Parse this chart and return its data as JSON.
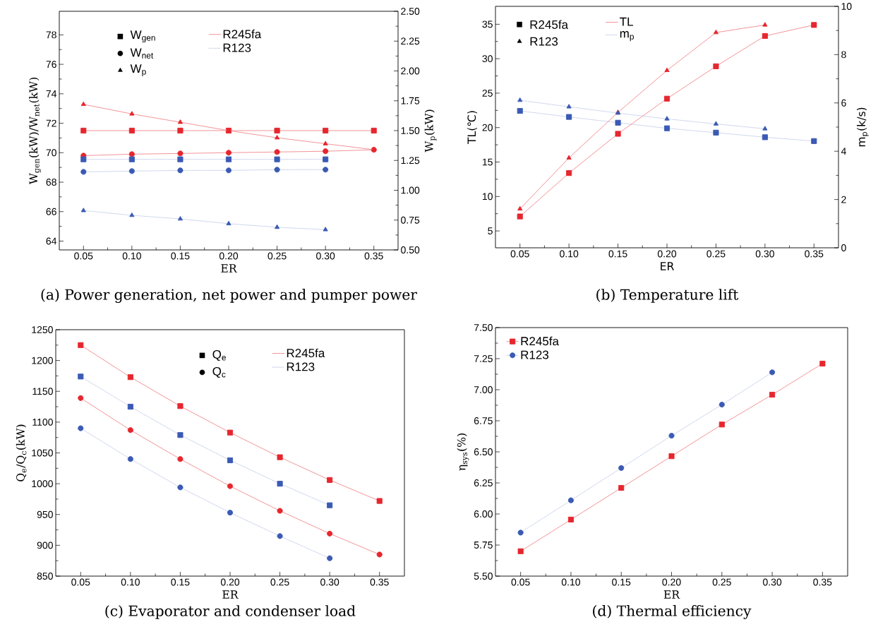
{
  "chart_data": [
    {
      "type": "line",
      "title": "(a) Power generation, net power and pumper power",
      "xlabel": "ER",
      "ylabel": "W$_{gen}$(kW)/W$_{net}$(kW)",
      "y2label": "W$_{p}$(kW)",
      "x": [
        0.05,
        0.1,
        0.15,
        0.2,
        0.25,
        0.3,
        0.35
      ],
      "xlim": [
        0.025,
        0.375
      ],
      "xticks": [
        0.05,
        {
          "value": 0.1,
          "label": "0.10"
        },
        0.15,
        {
          "value": 0.2,
          "label": "0.20"
        },
        0.25,
        {
          "value": 0.3,
          "label": "0.30"
        },
        0.35
      ],
      "ylim": [
        63.4,
        79.6
      ],
      "yticks": [
        64,
        66,
        68,
        70,
        72,
        74,
        76,
        78
      ],
      "y2lim": [
        0.5,
        2.5
      ],
      "y2ticks": [
        {
          "value": 0.5,
          "label": "0.50"
        },
        0.75,
        {
          "value": 1,
          "label": "1.00"
        },
        1.25,
        {
          "value": 1.5,
          "label": "1.50"
        },
        1.75,
        {
          "value": 2,
          "label": "2.00"
        },
        2.25,
        {
          "value": 2.5,
          "label": "2.50"
        }
      ],
      "annotations": [
        "W$_{gen}$",
        "W$_{net}$",
        "W$_{p}$"
      ],
      "legend": "top",
      "series": [
        {
          "name": "R245fa",
          "color": "#e6262e",
          "marker": "square",
          "line_style": "solid",
          "values": [
            71.5,
            71.5,
            71.5,
            71.5,
            71.5,
            71.5,
            71.5
          ]
        },
        {
          "color": "#e6262e",
          "marker": "circle",
          "line_style": "solid",
          "values": [
            69.8,
            69.9,
            69.95,
            70.0,
            70.05,
            70.1,
            70.2
          ]
        },
        {
          "color": "#e6262e",
          "marker": "triangle",
          "line_style": "solid",
          "axis": "y2",
          "values": [
            1.72,
            1.64,
            1.57,
            1.5,
            1.44,
            1.39,
            1.34
          ]
        },
        {
          "name": "R123",
          "color": "#3a5ab4",
          "marker": "square",
          "line_style": "dotted",
          "x": [
            0.05,
            0.1,
            0.15,
            0.2,
            0.25,
            0.3
          ],
          "values": [
            69.55,
            69.55,
            69.55,
            69.55,
            69.55,
            69.55
          ]
        },
        {
          "color": "#3a5ab4",
          "marker": "circle",
          "line_style": "dotted",
          "x": [
            0.05,
            0.1,
            0.15,
            0.2,
            0.25,
            0.3
          ],
          "values": [
            68.7,
            68.75,
            68.8,
            68.8,
            68.85,
            68.85
          ]
        },
        {
          "color": "#3a5ab4",
          "marker": "triangle",
          "line_style": "dotted",
          "axis": "y2",
          "x": [
            0.05,
            0.1,
            0.15,
            0.2,
            0.25,
            0.3
          ],
          "values": [
            0.83,
            0.79,
            0.76,
            0.72,
            0.69,
            0.67
          ]
        }
      ]
    },
    {
      "type": "line",
      "title": "(b) Temperature lift",
      "xlabel": "ER",
      "ylabel": "TL(℃)",
      "y2label": "m$_{p}$(k/s)",
      "x": [
        0.05,
        0.1,
        0.15,
        0.2,
        0.25,
        0.3,
        0.35
      ],
      "xlim": [
        0.025,
        0.375
      ],
      "xticks": [
        0.05,
        {
          "value": 0.1,
          "label": "0.10"
        },
        0.15,
        {
          "value": 0.2,
          "label": "0.20"
        },
        0.25,
        {
          "value": 0.3,
          "label": "0.30"
        },
        0.35
      ],
      "ylim": [
        2.55,
        37.6
      ],
      "yticks": [
        5,
        10,
        15,
        20,
        25,
        30,
        35
      ],
      "y2lim": [
        0,
        10
      ],
      "y2ticks": [
        0,
        2,
        4,
        6,
        8,
        10
      ],
      "annotations": [
        "R245fa",
        "R123"
      ],
      "legend": "top left",
      "series": [
        {
          "name": "TL",
          "color": "#e6262e",
          "marker": "square",
          "line_style": "solid",
          "values": [
            7.1,
            13.4,
            19.1,
            24.2,
            28.9,
            33.3,
            34.9
          ]
        },
        {
          "color": "#e6262e",
          "marker": "triangle",
          "line_style": "solid",
          "x": [
            0.05,
            0.1,
            0.15,
            0.2,
            0.25,
            0.3
          ],
          "values": [
            8.2,
            15.6,
            22.2,
            28.3,
            33.8,
            34.9
          ]
        },
        {
          "name": "m$_{p}$",
          "color": "#3a5ab4",
          "marker": "square",
          "line_style": "dotted",
          "axis": "y2",
          "values": [
            5.67,
            5.42,
            5.18,
            4.95,
            4.77,
            4.58,
            4.42
          ]
        },
        {
          "color": "#3a5ab4",
          "marker": "triangle",
          "line_style": "dotted",
          "axis": "y2",
          "x": [
            0.05,
            0.1,
            0.15,
            0.2,
            0.25,
            0.3
          ],
          "values": [
            6.11,
            5.84,
            5.58,
            5.34,
            5.13,
            4.93
          ]
        }
      ]
    },
    {
      "type": "line",
      "title": "(c) Evaporator and condenser load",
      "xlabel": "ER",
      "ylabel": "Q$_{e}$/Q$_{c}$(kW)",
      "x": [
        0.05,
        0.1,
        0.15,
        0.2,
        0.25,
        0.3,
        0.35
      ],
      "xlim": [
        0.025,
        0.375
      ],
      "xticks": [
        0.05,
        {
          "value": 0.1,
          "label": "0.10"
        },
        0.15,
        {
          "value": 0.2,
          "label": "0.20"
        },
        0.25,
        {
          "value": 0.3,
          "label": "0.30"
        },
        0.35
      ],
      "ylim": [
        850,
        1250
      ],
      "yticks": [
        850,
        900,
        950,
        1000,
        1050,
        1100,
        1150,
        1200,
        1250
      ],
      "annotations": [
        "Q$_{e}$",
        "Q$_{c}$"
      ],
      "legend": "top right",
      "series": [
        {
          "name": "R245fa",
          "color": "#e6262e",
          "marker": "square",
          "line_style": "solid",
          "values": [
            1225,
            1173,
            1126,
            1083,
            1043,
            1006,
            972
          ]
        },
        {
          "color": "#e6262e",
          "marker": "circle",
          "line_style": "solid",
          "values": [
            1139,
            1087,
            1040,
            996,
            956,
            919,
            885
          ]
        },
        {
          "name": "R123",
          "color": "#3a5ab4",
          "marker": "square",
          "line_style": "dotted",
          "x": [
            0.05,
            0.1,
            0.15,
            0.2,
            0.25,
            0.3
          ],
          "values": [
            1174,
            1125,
            1079,
            1038,
            1000,
            965
          ]
        },
        {
          "color": "#3a5ab4",
          "marker": "circle",
          "line_style": "dotted",
          "x": [
            0.05,
            0.1,
            0.15,
            0.2,
            0.25,
            0.3
          ],
          "values": [
            1090,
            1040,
            994,
            953,
            915,
            879
          ]
        }
      ]
    },
    {
      "type": "line",
      "title": "(d) Thermal efficiency",
      "xlabel": "ER",
      "ylabel": "η$_{sys}$(%)",
      "x": [
        0.05,
        0.1,
        0.15,
        0.2,
        0.25,
        0.3,
        0.35
      ],
      "xlim": [
        0.025,
        0.375
      ],
      "xticks": [
        0.05,
        {
          "value": 0.1,
          "label": "0.10"
        },
        0.15,
        {
          "value": 0.2,
          "label": "0.20"
        },
        0.25,
        {
          "value": 0.3,
          "label": "0.30"
        },
        0.35
      ],
      "ylim": [
        5.5,
        7.5
      ],
      "yticks": [
        {
          "value": 5.5,
          "label": "5.50"
        },
        5.75,
        {
          "value": 6,
          "label": "6.00"
        },
        6.25,
        {
          "value": 6.5,
          "label": "6.50"
        },
        6.75,
        {
          "value": 7,
          "label": "7.00"
        },
        7.25,
        {
          "value": 7.5,
          "label": "7.50"
        }
      ],
      "legend": "top left",
      "series": [
        {
          "name": "R245fa",
          "color": "#e6262e",
          "marker": "square",
          "line_style": "solid",
          "values": [
            5.7,
            5.955,
            6.21,
            6.465,
            6.72,
            6.96,
            7.21
          ]
        },
        {
          "name": "R123",
          "color": "#3a5ab4",
          "marker": "circle",
          "line_style": "dotted",
          "x": [
            0.05,
            0.1,
            0.15,
            0.2,
            0.25,
            0.3
          ],
          "values": [
            5.85,
            6.11,
            6.37,
            6.63,
            6.88,
            7.14
          ]
        }
      ]
    }
  ]
}
